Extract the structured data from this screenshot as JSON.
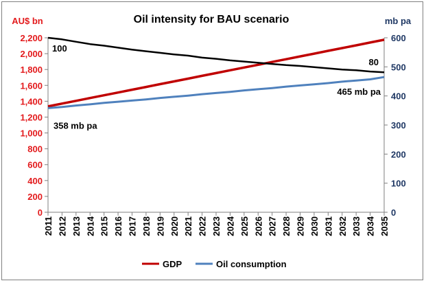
{
  "chart_data": {
    "type": "line",
    "title": "Oil intensity for BAU scenario",
    "left_axis": {
      "label": "AU$ bn",
      "range": [
        0,
        2200
      ],
      "step": 200,
      "ticks": [
        "0",
        "200",
        "400",
        "600",
        "800",
        "1,000",
        "1,200",
        "1,400",
        "1,600",
        "1,800",
        "2,000",
        "2,200"
      ],
      "color": "#e31a1c"
    },
    "right_axis": {
      "label": "mb pa",
      "range": [
        0,
        600
      ],
      "step": 100,
      "ticks": [
        "0",
        "100",
        "200",
        "300",
        "400",
        "500",
        "600"
      ],
      "color": "#1f3864"
    },
    "x": [
      "2011",
      "2012",
      "2013",
      "2014",
      "2015",
      "2016",
      "2017",
      "2018",
      "2019",
      "2020",
      "2021",
      "2022",
      "2023",
      "2024",
      "2025",
      "2026",
      "2027",
      "2028",
      "2029",
      "2030",
      "2031",
      "2032",
      "2033",
      "2034",
      "2035"
    ],
    "series": [
      {
        "name": "GDP",
        "axis": "left",
        "color": "#c00000",
        "values": [
          1335,
          1370,
          1405,
          1440,
          1475,
          1510,
          1545,
          1580,
          1615,
          1650,
          1685,
          1720,
          1755,
          1790,
          1825,
          1860,
          1895,
          1930,
          1965,
          2000,
          2035,
          2070,
          2105,
          2140,
          2175
        ]
      },
      {
        "name": "Oil consumption",
        "axis": "right",
        "color": "#4f81bd",
        "values": [
          358,
          362,
          367,
          371,
          376,
          380,
          384,
          388,
          393,
          397,
          401,
          406,
          410,
          414,
          419,
          423,
          427,
          432,
          436,
          440,
          444,
          449,
          453,
          457,
          465
        ]
      },
      {
        "axis": "left",
        "color": "#000000",
        "values": [
          2200,
          2180,
          2150,
          2120,
          2100,
          2075,
          2050,
          2030,
          2010,
          1990,
          1975,
          1950,
          1935,
          1915,
          1900,
          1885,
          1870,
          1855,
          1845,
          1830,
          1815,
          1800,
          1790,
          1775,
          1765
        ]
      }
    ],
    "annotations": [
      {
        "text": "100",
        "series": 2,
        "index": 0
      },
      {
        "text": "80",
        "series": 2,
        "index": 24
      },
      {
        "text": "358 mb pa",
        "series": 1,
        "index": 0
      },
      {
        "text": "465 mb pa",
        "series": 1,
        "index": 24
      }
    ],
    "legend_position": "bottom",
    "grid": false
  }
}
